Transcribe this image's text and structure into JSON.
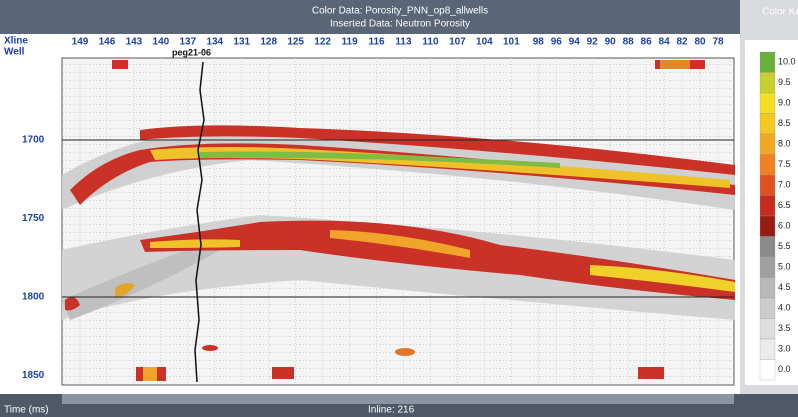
{
  "header": {
    "line1": "Color Data:  Porosity_PNN_op8_allwells",
    "line2": "Inserted Data:  Neutron Porosity",
    "colorkey_title": "Color Ke"
  },
  "axis": {
    "xline_label": "Xline",
    "well_label": "Well",
    "xlines": [
      "149",
      "146",
      "143",
      "140",
      "137",
      "134",
      "131",
      "128",
      "125",
      "122",
      "119",
      "116",
      "113",
      "110",
      "107",
      "104",
      "101",
      "98",
      "96",
      "94",
      "92",
      "90",
      "88",
      "86",
      "84",
      "82",
      "80",
      "78"
    ],
    "times": [
      "1700",
      "1750",
      "1800",
      "1850"
    ]
  },
  "well": {
    "name": "peg21-06"
  },
  "colorbar": {
    "labels": [
      "10.0",
      "9.5",
      "9.0",
      "8.5",
      "8.0",
      "7.5",
      "7.0",
      "6.5",
      "6.0",
      "5.5",
      "5.0",
      "4.5",
      "4.0",
      "3.5",
      "3.0",
      "0.0"
    ]
  },
  "footer": {
    "left": "Time (ms)",
    "center": "Inline: 216"
  }
}
